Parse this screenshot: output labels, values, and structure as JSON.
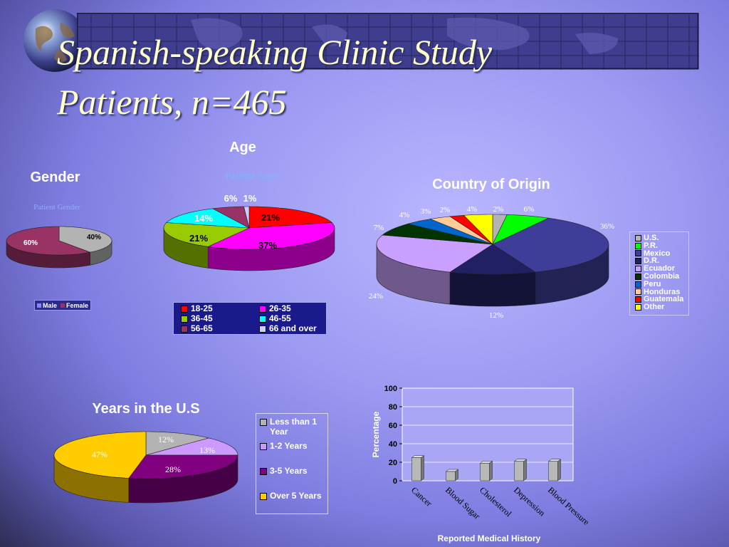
{
  "slide": {
    "title_line1": "Spanish-speaking Clinic Study",
    "title_line2": "Patients, n=465"
  },
  "colors": {
    "title": "#ffffc8",
    "header_bar": "#3f3e8e",
    "chart_label": "#ffffff"
  },
  "chart_data": [
    {
      "type": "pie",
      "title": "Gender",
      "subtitle": "Patient Gender",
      "categories": [
        "Male",
        "Female"
      ],
      "values": [
        40,
        60
      ],
      "labels": [
        "40%",
        "60%"
      ],
      "colors": [
        "#b3b3b3",
        "#993366"
      ],
      "legend": "bottom"
    },
    {
      "type": "pie",
      "title": "Age",
      "subtitle": "Patient Ages",
      "categories": [
        "18-25",
        "26-35",
        "36-45",
        "46-55",
        "56-65",
        "66 and over"
      ],
      "values": [
        21,
        37,
        21,
        14,
        6,
        1
      ],
      "labels": [
        "21%",
        "37%",
        "21%",
        "14%",
        "6%",
        "1%"
      ],
      "colors": [
        "#ff0000",
        "#ff00ff",
        "#99cc00",
        "#00ffff",
        "#993366",
        "#ccccff"
      ],
      "legend": "bottom"
    },
    {
      "type": "pie",
      "title": "Country of Origin",
      "categories": [
        "U.S.",
        "P.R.",
        "Mexico",
        "D.R.",
        "Ecuador",
        "Colombia",
        "Peru",
        "Honduras",
        "Guatemala",
        "Other"
      ],
      "values": [
        2,
        6,
        36,
        12,
        24,
        7,
        4,
        3,
        2,
        4
      ],
      "labels": [
        "2%",
        "6%",
        "36%",
        "12%",
        "24%",
        "7%",
        "4%",
        "3%",
        "2%",
        "4%"
      ],
      "colors": [
        "#b3b3b3",
        "#00ff00",
        "#3e3d99",
        "#222064",
        "#c9a0ff",
        "#003300",
        "#0066cc",
        "#ffcc99",
        "#ff0000",
        "#ffff00"
      ],
      "legend": "right"
    },
    {
      "type": "pie",
      "title": "Years in the U.S",
      "categories": [
        "Less than 1 Year",
        "1-2 Years",
        "3-5 Years",
        "Over 5 Years"
      ],
      "values": [
        12,
        13,
        28,
        47
      ],
      "labels": [
        "12%",
        "13%",
        "28%",
        "47%"
      ],
      "colors": [
        "#b3b3b3",
        "#cc99ff",
        "#800080",
        "#ffcc00"
      ],
      "legend": "right"
    },
    {
      "type": "bar",
      "title": "",
      "categories": [
        "Cancer",
        "Blood Sugar",
        "Cholesterol",
        "Depression",
        "Blood Pressure"
      ],
      "values": [
        25,
        10,
        19,
        21,
        21
      ],
      "xlabel": "Reported Medical History",
      "ylabel": "Percentage",
      "ylim": [
        0,
        100
      ],
      "yticks": [
        "0",
        "20",
        "40",
        "60",
        "80",
        "100"
      ],
      "grid": true
    }
  ]
}
